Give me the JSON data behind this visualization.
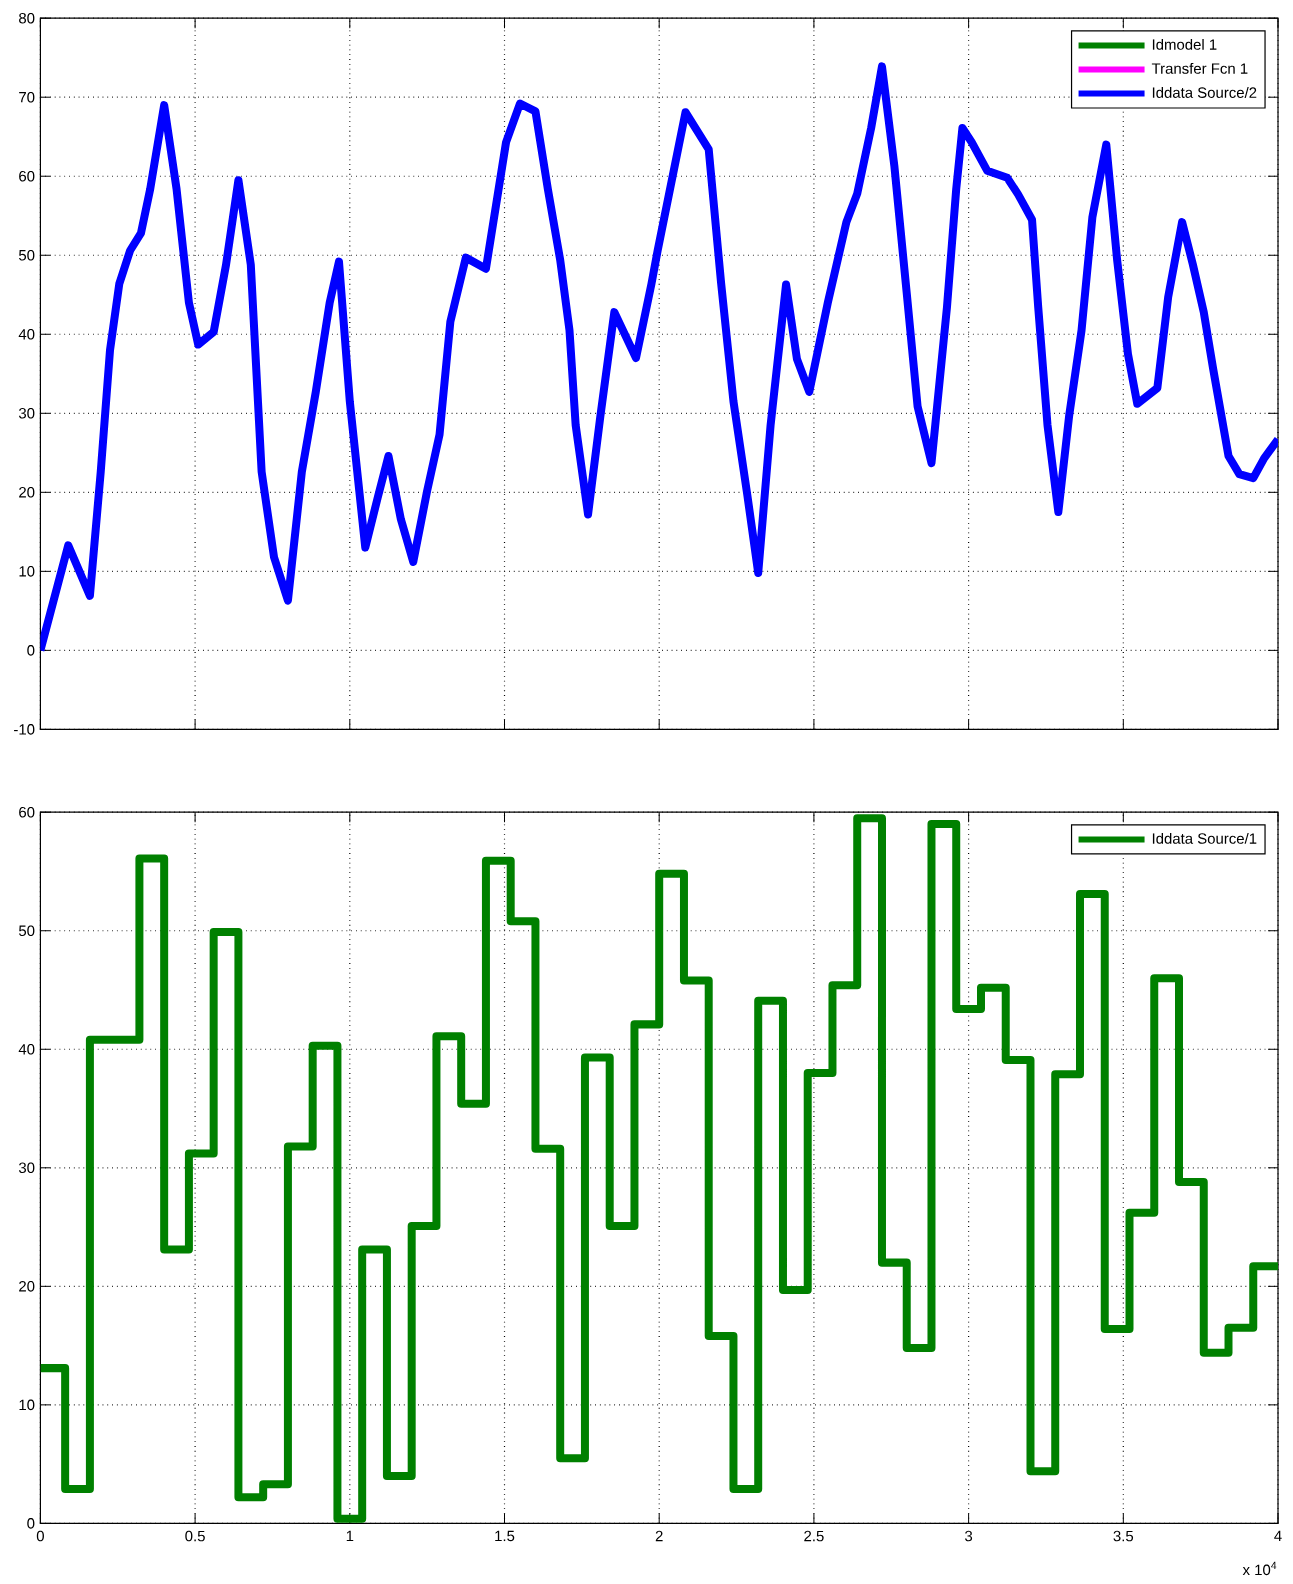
{
  "chart_data": [
    {
      "type": "line",
      "x": [
        0,
        0.09,
        0.16,
        0.195,
        0.225,
        0.255,
        0.29,
        0.325,
        0.355,
        0.4,
        0.44,
        0.48,
        0.51,
        0.56,
        0.6,
        0.64,
        0.68,
        0.715,
        0.755,
        0.8,
        0.845,
        0.89,
        0.935,
        0.965,
        1.0,
        1.05,
        1.09,
        1.125,
        1.165,
        1.205,
        1.25,
        1.29,
        1.325,
        1.375,
        1.44,
        1.505,
        1.55,
        1.6,
        1.64,
        1.68,
        1.71,
        1.73,
        1.77,
        1.81,
        1.855,
        1.925,
        1.975,
        1.995,
        2.085,
        2.16,
        2.2,
        2.24,
        2.285,
        2.32,
        2.36,
        2.41,
        2.445,
        2.485,
        2.545,
        2.605,
        2.64,
        2.685,
        2.72,
        2.76,
        2.8,
        2.835,
        2.88,
        2.93,
        2.96,
        2.98,
        3.01,
        3.06,
        3.125,
        3.16,
        3.205,
        3.225,
        3.255,
        3.29,
        3.325,
        3.365,
        3.4,
        3.445,
        3.48,
        3.515,
        3.545,
        3.61,
        3.645,
        3.69,
        3.725,
        3.76,
        3.79,
        3.84,
        3.875,
        3.92,
        3.955,
        4.0
      ],
      "series": [
        {
          "name": "Idmodel 1",
          "color": "#008000",
          "values": [
            null,
            null,
            null,
            null,
            null,
            null,
            null,
            null,
            null,
            null,
            null,
            null,
            null,
            null,
            null,
            null,
            null,
            null,
            null,
            null,
            null,
            null,
            null,
            null,
            null,
            null,
            null,
            null,
            null,
            null,
            null,
            null,
            null,
            null,
            null,
            null,
            null,
            null,
            null,
            null,
            null,
            null,
            null,
            null,
            null,
            null,
            null,
            null,
            null,
            null,
            null,
            null,
            null,
            null,
            null,
            null,
            null,
            null,
            null,
            null,
            null,
            null,
            null,
            null,
            null,
            null,
            null,
            null,
            null,
            null,
            null,
            null,
            null,
            null,
            null,
            null,
            null,
            null,
            null,
            null,
            null,
            null,
            null,
            null,
            null,
            null,
            null,
            null,
            null,
            null,
            null,
            null,
            null,
            null,
            null,
            null
          ]
        },
        {
          "name": "Transfer Fcn 1",
          "color": "#ff00ff",
          "values": [
            null,
            null,
            null,
            null,
            null,
            null,
            null,
            null,
            null,
            null,
            null,
            null,
            null,
            null,
            null,
            null,
            null,
            null,
            null,
            null,
            null,
            null,
            null,
            null,
            null,
            null,
            null,
            null,
            null,
            null,
            null,
            null,
            null,
            null,
            null,
            null,
            null,
            null,
            null,
            null,
            null,
            null,
            null,
            null,
            null,
            null,
            null,
            null,
            null,
            null,
            null,
            null,
            null,
            null,
            null,
            null,
            null,
            null,
            null,
            null,
            null,
            null,
            null,
            null,
            null,
            null,
            null,
            null,
            null,
            null,
            null,
            null,
            null,
            null,
            null,
            null,
            null,
            null,
            null,
            null,
            null,
            null,
            null,
            null,
            null,
            null,
            null,
            null,
            null,
            null,
            null,
            null,
            null,
            null,
            null,
            null
          ]
        },
        {
          "name": "Iddata Source/2",
          "color": "#0000ff",
          "values": [
            0,
            13.3,
            6.9,
            22.6,
            38.0,
            46.4,
            50.6,
            52.8,
            58.4,
            69.0,
            58.4,
            44.0,
            38.7,
            40.3,
            48.8,
            59.5,
            48.8,
            22.6,
            11.8,
            6.3,
            22.6,
            32.7,
            44.0,
            49.2,
            31.5,
            13.0,
            19.3,
            24.6,
            16.6,
            11.2,
            20.2,
            27.3,
            41.6,
            49.7,
            48.3,
            64.3,
            69.2,
            68.2,
            58.4,
            49.4,
            40.5,
            28.5,
            17.2,
            29.7,
            42.8,
            37.0,
            46.4,
            50.6,
            68.1,
            63.4,
            46.5,
            31.5,
            19.6,
            9.8,
            28.5,
            46.3,
            36.9,
            32.7,
            44.0,
            54.2,
            57.8,
            66.1,
            73.9,
            61.3,
            45.2,
            30.9,
            23.7,
            43.4,
            58.4,
            66.1,
            64.3,
            60.7,
            59.8,
            57.7,
            54.5,
            43.4,
            28.5,
            17.5,
            29.7,
            40.5,
            54.8,
            64.0,
            49.4,
            37.5,
            31.2,
            33.2,
            44.7,
            54.2,
            48.8,
            42.8,
            35.7,
            24.6,
            22.3,
            21.8,
            24.3,
            26.7
          ]
        }
      ],
      "xlim": [
        0,
        4
      ],
      "ylim": [
        -10,
        80
      ],
      "xticks": [
        0,
        0.5,
        1,
        1.5,
        2,
        2.5,
        3,
        3.5,
        4
      ],
      "yticks": [
        -10,
        0,
        10,
        20,
        30,
        40,
        50,
        60,
        70,
        80
      ],
      "tick_labels": "y",
      "grid": true,
      "legend": "top right"
    },
    {
      "type": "step",
      "x": [
        0,
        0.08,
        0.16,
        0.24,
        0.32,
        0.4,
        0.48,
        0.56,
        0.64,
        0.72,
        0.8,
        0.88,
        0.96,
        1.04,
        1.12,
        1.2,
        1.28,
        1.36,
        1.44,
        1.52,
        1.6,
        1.68,
        1.76,
        1.84,
        1.92,
        2.0,
        2.08,
        2.16,
        2.24,
        2.32,
        2.4,
        2.48,
        2.56,
        2.64,
        2.72,
        2.8,
        2.88,
        2.96,
        3.04,
        3.12,
        3.2,
        3.28,
        3.36,
        3.44,
        3.52,
        3.6,
        3.68,
        3.76,
        3.84,
        3.92,
        4.0
      ],
      "series": [
        {
          "name": "Iddata Source/1",
          "color": "#008000",
          "values": [
            13.1,
            2.9,
            40.8,
            40.8,
            56.1,
            23.1,
            31.2,
            49.9,
            2.2,
            3.3,
            31.8,
            40.3,
            0.4,
            23.1,
            4.0,
            25.1,
            41.1,
            35.4,
            55.9,
            50.8,
            31.6,
            5.5,
            39.3,
            25.1,
            42.1,
            54.8,
            45.8,
            15.8,
            2.9,
            44.1,
            19.7,
            38.0,
            45.4,
            59.5,
            22.0,
            14.8,
            59.0,
            43.4,
            45.2,
            39.1,
            4.4,
            37.9,
            53.1,
            16.4,
            26.2,
            46.0,
            28.8,
            14.4,
            16.5,
            21.7,
            21.7
          ]
        }
      ],
      "xlim": [
        0,
        4
      ],
      "ylim": [
        0,
        60
      ],
      "xticks": [
        0,
        0.5,
        1,
        1.5,
        2,
        2.5,
        3,
        3.5,
        4
      ],
      "yticks": [
        0,
        10,
        20,
        30,
        40,
        50,
        60
      ],
      "grid": true,
      "legend": "top right",
      "annotations": [
        "x 10$^{4}$"
      ]
    }
  ]
}
